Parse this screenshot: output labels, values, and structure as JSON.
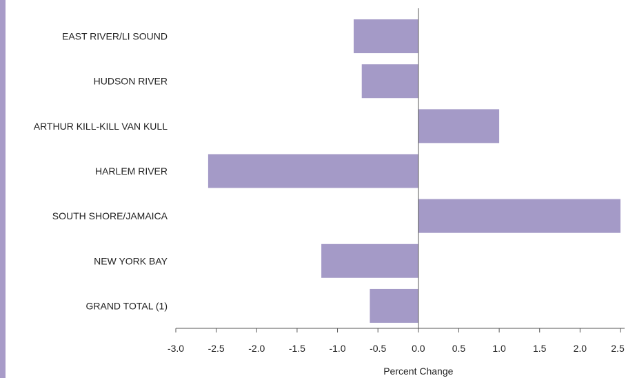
{
  "chart_data": {
    "type": "bar",
    "orientation": "horizontal",
    "categories": [
      "EAST RIVER/LI SOUND",
      "HUDSON RIVER",
      "ARTHUR KILL-KILL VAN KULL",
      "HARLEM RIVER",
      "SOUTH SHORE/JAMAICA",
      "NEW YORK BAY",
      "GRAND TOTAL (1)"
    ],
    "values": [
      -0.8,
      -0.7,
      1.0,
      -2.6,
      2.5,
      -1.2,
      -0.6
    ],
    "xlabel": "Percent Change",
    "ylabel": "",
    "xlim": [
      -3.0,
      2.5
    ],
    "xticks": [
      "-3.0",
      "-2.5",
      "-2.0",
      "-1.5",
      "-1.0",
      "-0.5",
      "0.0",
      "0.5",
      "1.0",
      "1.5",
      "2.0",
      "2.5"
    ],
    "grid": false,
    "bar_color": "#a49ac7",
    "accent_color": "#a89bc8"
  }
}
